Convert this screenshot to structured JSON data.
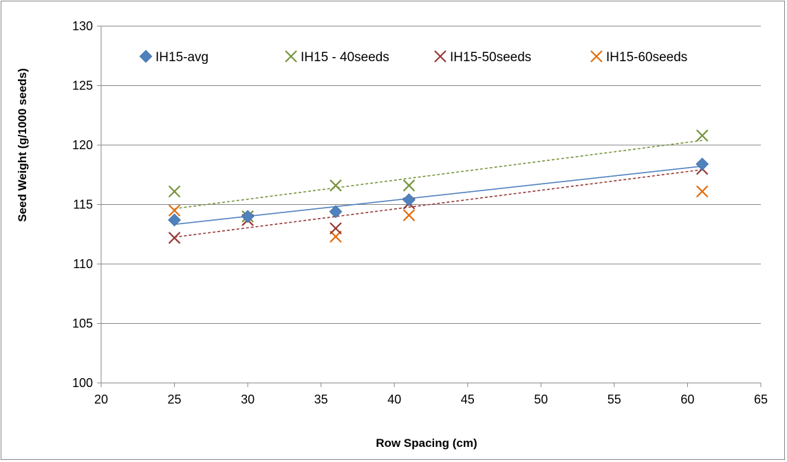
{
  "chart_data": {
    "type": "scatter",
    "title": "",
    "xlabel": "Row Spacing (cm)",
    "ylabel": "Seed Weight (g/1000 seeds)",
    "xlim": [
      20,
      65
    ],
    "ylim": [
      100,
      130
    ],
    "x_ticks": [
      20,
      25,
      30,
      35,
      40,
      45,
      50,
      55,
      60,
      65
    ],
    "y_ticks": [
      100,
      105,
      110,
      115,
      120,
      125,
      130
    ],
    "grid": "horizontal",
    "legend_position": "top",
    "series": [
      {
        "name": "IH15-avg",
        "marker": "diamond",
        "color": "#4F81BD",
        "x": [
          25,
          30,
          36,
          41,
          61
        ],
        "y": [
          113.7,
          114.0,
          114.4,
          115.4,
          118.4
        ],
        "trendline": {
          "style": "solid",
          "color": "#4F81BD"
        }
      },
      {
        "name": "IH15 - 40seeds",
        "marker": "x",
        "color": "#77933C",
        "x": [
          25,
          30,
          36,
          41,
          61
        ],
        "y": [
          116.1,
          114.0,
          116.6,
          116.6,
          120.8
        ],
        "trendline": {
          "style": "dashed",
          "color": "#77933C"
        }
      },
      {
        "name": "IH15-50seeds",
        "marker": "x",
        "color": "#953735",
        "x": [
          25,
          30,
          36,
          41,
          61
        ],
        "y": [
          112.2,
          113.7,
          113.0,
          115.1,
          118.0
        ],
        "trendline": {
          "style": "dashed",
          "color": "#953735"
        }
      },
      {
        "name": "IH15-60seeds",
        "marker": "x",
        "color": "#E46C0A",
        "x": [
          25,
          30,
          36,
          41,
          61
        ],
        "y": [
          114.5,
          113.7,
          112.3,
          114.1,
          116.1
        ],
        "trendline": null
      }
    ]
  }
}
